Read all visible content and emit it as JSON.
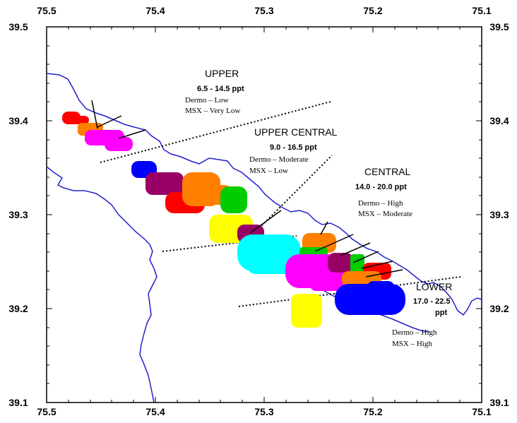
{
  "axes": {
    "x_ticks": [
      "75.5",
      "75.4",
      "75.3",
      "75.2",
      "75.1"
    ],
    "y_ticks": [
      "39.5",
      "39.4",
      "39.3",
      "39.2",
      "39.1"
    ]
  },
  "regions": {
    "upper": {
      "name": "UPPER",
      "salinity": "6.5 - 14.5 ppt",
      "dermo": "Dermo – Low",
      "msx": "MSX – Very Low"
    },
    "upper_central": {
      "name": "UPPER CENTRAL",
      "salinity": "9.0 - 16.5 ppt",
      "dermo": "Dermo – Moderate",
      "msx": "MSX – Low"
    },
    "central": {
      "name": "CENTRAL",
      "salinity": "14.0 - 20.0 ppt",
      "dermo": "Dermo – High",
      "msx": "MSX – Moderate"
    },
    "lower": {
      "name": "LOWER",
      "salinity_a": "17.0 - 22.5",
      "salinity_b": "ppt",
      "dermo": "Dermo – High",
      "msx": "MSX – High"
    }
  },
  "colors": {
    "shoreline": "#2020d0",
    "red": "#ff0000",
    "orange": "#ff7f00",
    "magenta": "#ff00ff",
    "blue": "#0000ff",
    "purple": "#990066",
    "green": "#00cc00",
    "yellow": "#ffff00",
    "cyan": "#00ffff"
  }
}
